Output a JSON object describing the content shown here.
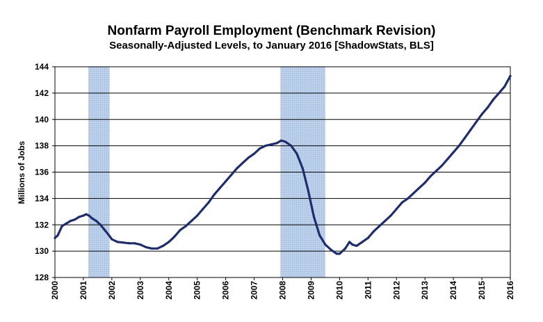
{
  "chart_data": {
    "type": "line",
    "title": "Nonfarm Payroll Employment  (Benchmark Revision)",
    "subtitle": "Seasonally-Adjusted Levels, to January 2016 [ShadowStats, BLS]",
    "xlabel": "",
    "ylabel": "Millions  of  Jobs",
    "xlim": [
      2000.0,
      2016.0
    ],
    "ylim": [
      128,
      144
    ],
    "yticks": [
      128,
      130,
      132,
      134,
      136,
      138,
      140,
      142,
      144
    ],
    "xtick_labels": [
      "2000",
      "2001",
      "2002",
      "2003",
      "2004",
      "2005",
      "2006",
      "2007",
      "2008",
      "2009",
      "2010",
      "2011",
      "2012",
      "2013",
      "2014",
      "2015",
      "2016"
    ],
    "grid": "horizontal",
    "recession_bands": [
      {
        "start": 2001.17,
        "end": 2001.92
      },
      {
        "start": 2007.92,
        "end": 2009.5
      }
    ],
    "series": [
      {
        "color": "#1f2d6b",
        "x": [
          2000.0,
          2000.1,
          2000.25,
          2000.4,
          2000.55,
          2000.7,
          2000.85,
          2001.0,
          2001.1,
          2001.2,
          2001.3,
          2001.45,
          2001.6,
          2001.75,
          2001.9,
          2002.0,
          2002.2,
          2002.4,
          2002.6,
          2002.8,
          2003.0,
          2003.2,
          2003.4,
          2003.6,
          2003.8,
          2004.0,
          2004.2,
          2004.4,
          2004.6,
          2004.8,
          2005.0,
          2005.2,
          2005.4,
          2005.6,
          2005.8,
          2006.0,
          2006.2,
          2006.4,
          2006.6,
          2006.8,
          2007.0,
          2007.2,
          2007.4,
          2007.6,
          2007.8,
          2007.95,
          2008.1,
          2008.3,
          2008.5,
          2008.7,
          2008.9,
          2009.1,
          2009.3,
          2009.5,
          2009.7,
          2009.9,
          2010.0,
          2010.2,
          2010.35,
          2010.45,
          2010.6,
          2010.8,
          2011.0,
          2011.2,
          2011.4,
          2011.6,
          2011.8,
          2012.0,
          2012.2,
          2012.4,
          2012.6,
          2012.8,
          2013.0,
          2013.2,
          2013.4,
          2013.6,
          2013.8,
          2014.0,
          2014.2,
          2014.4,
          2014.6,
          2014.8,
          2015.0,
          2015.2,
          2015.4,
          2015.6,
          2015.8,
          2015.9,
          2016.0
        ],
        "values": [
          131.0,
          131.2,
          131.9,
          132.1,
          132.3,
          132.4,
          132.6,
          132.7,
          132.8,
          132.7,
          132.5,
          132.3,
          132.0,
          131.6,
          131.2,
          130.9,
          130.7,
          130.65,
          130.6,
          130.6,
          130.5,
          130.3,
          130.2,
          130.2,
          130.4,
          130.7,
          131.1,
          131.6,
          131.9,
          132.3,
          132.7,
          133.2,
          133.7,
          134.3,
          134.8,
          135.3,
          135.8,
          136.3,
          136.7,
          137.1,
          137.4,
          137.8,
          138.0,
          138.1,
          138.2,
          138.4,
          138.3,
          138.0,
          137.4,
          136.3,
          134.6,
          132.6,
          131.2,
          130.5,
          130.1,
          129.8,
          129.8,
          130.2,
          130.7,
          130.5,
          130.4,
          130.7,
          131.0,
          131.5,
          131.9,
          132.3,
          132.7,
          133.2,
          133.7,
          134.0,
          134.4,
          134.8,
          135.2,
          135.7,
          136.1,
          136.5,
          137.0,
          137.5,
          138.0,
          138.6,
          139.2,
          139.8,
          140.4,
          140.9,
          141.5,
          142.0,
          142.5,
          142.9,
          143.3
        ]
      }
    ]
  }
}
